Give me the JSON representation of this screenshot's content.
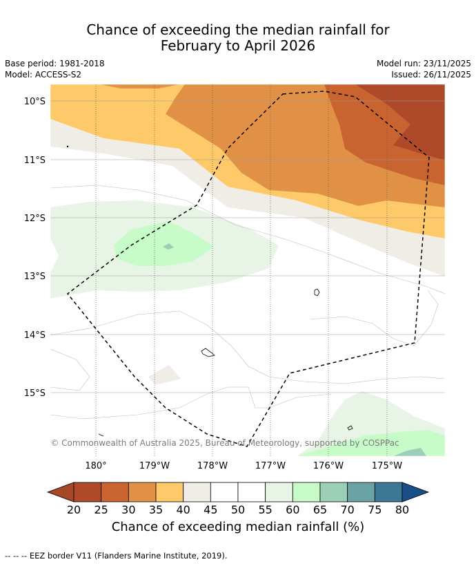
{
  "title": {
    "line1": "Chance of exceeding the median rainfall for",
    "line2": "February to April 2026"
  },
  "meta": {
    "base_period": "Base period: 1981-2018",
    "model": "Model: ACCESS-S2",
    "model_run": "Model run: 23/11/2025",
    "issued": "Issued: 26/11/2025"
  },
  "map": {
    "lat_labels": [
      "10°S",
      "11°S",
      "12°S",
      "13°S",
      "14°S",
      "15°S"
    ],
    "lon_labels": [
      "180°",
      "179°W",
      "178°W",
      "177°W",
      "176°W",
      "175°W"
    ],
    "copyright": "© Commonwealth of Australia 2025, Bureau of Meteorology, supported by COSPPac"
  },
  "colorbar": {
    "ticks": [
      "20",
      "25",
      "30",
      "35",
      "40",
      "45",
      "50",
      "55",
      "60",
      "65",
      "70",
      "75",
      "80"
    ],
    "label": "Chance of exceeding median rainfall (%)",
    "colors": [
      "#a64828",
      "#ae4a2a",
      "#c9632f",
      "#e09146",
      "#fdc969",
      "#efede6",
      "#ffffff",
      "#ffffff",
      "#e7f4e6",
      "#c7fbc7",
      "#9ccfb8",
      "#6aa3a6",
      "#3e7696",
      "#184f89"
    ]
  },
  "legend": {
    "eez": "--  --  -- EEZ border V11 (Flanders Marine Institute, 2019)."
  }
}
